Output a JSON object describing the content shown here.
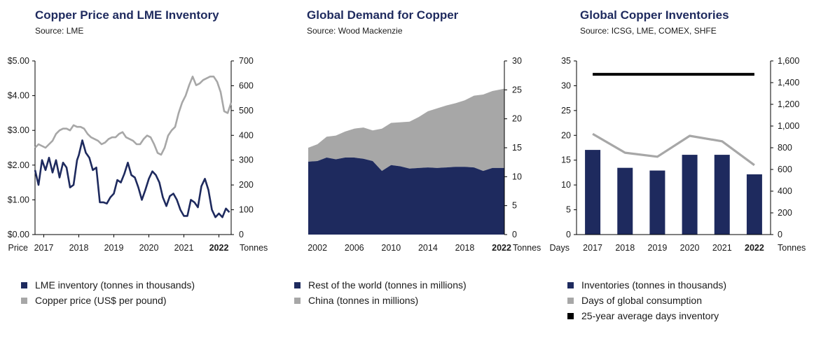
{
  "chart_data": [
    {
      "type": "line",
      "title": "Copper Price and LME Inventory",
      "subtitle": "Source: LME",
      "left_axis_label": "Price",
      "right_axis_label": "Tonnes",
      "left_ticks": [
        "$0.00",
        "$1.00",
        "$2.00",
        "$3.00",
        "$4.00",
        "$5.00"
      ],
      "right_ticks": [
        "0",
        "100",
        "200",
        "300",
        "400",
        "500",
        "600",
        "700"
      ],
      "ylim_left": [
        0,
        5
      ],
      "ylim_right": [
        0,
        700
      ],
      "xlim": [
        2016.75,
        2022.35
      ],
      "x_ticks": [
        {
          "label": "2017",
          "value": 2017.0,
          "bold": false
        },
        {
          "label": "2018",
          "value": 2018.0,
          "bold": false
        },
        {
          "label": "2019",
          "value": 2019.0,
          "bold": false
        },
        {
          "label": "2020",
          "value": 2020.0,
          "bold": false
        },
        {
          "label": "2021",
          "value": 2021.0,
          "bold": false
        },
        {
          "label": "2022",
          "value": 2022.0,
          "bold": true
        }
      ],
      "series": [
        {
          "name": "LME inventory (tonnes in thousands)",
          "axis": "right",
          "color": "#1e2a5e",
          "x": [
            2016.75,
            2016.85,
            2016.95,
            2017.05,
            2017.15,
            2017.25,
            2017.35,
            2017.45,
            2017.55,
            2017.65,
            2017.75,
            2017.85,
            2017.95,
            2018.0,
            2018.1,
            2018.2,
            2018.3,
            2018.4,
            2018.5,
            2018.6,
            2018.7,
            2018.8,
            2018.9,
            2019.0,
            2019.1,
            2019.2,
            2019.3,
            2019.4,
            2019.5,
            2019.6,
            2019.7,
            2019.8,
            2019.9,
            2020.0,
            2020.1,
            2020.2,
            2020.3,
            2020.4,
            2020.5,
            2020.6,
            2020.7,
            2020.8,
            2020.9,
            2021.0,
            2021.1,
            2021.2,
            2021.3,
            2021.4,
            2021.5,
            2021.6,
            2021.7,
            2021.8,
            2021.9,
            2022.0,
            2022.1,
            2022.2,
            2022.3
          ],
          "values": [
            260,
            200,
            300,
            260,
            310,
            250,
            300,
            230,
            290,
            270,
            190,
            200,
            300,
            320,
            380,
            330,
            310,
            260,
            270,
            130,
            130,
            125,
            150,
            165,
            220,
            210,
            245,
            290,
            240,
            230,
            190,
            140,
            180,
            225,
            255,
            240,
            210,
            150,
            115,
            155,
            165,
            140,
            100,
            75,
            75,
            140,
            130,
            110,
            195,
            225,
            180,
            100,
            70,
            85,
            70,
            105,
            90
          ]
        },
        {
          "name": "Copper price (US$ per pound)",
          "axis": "left",
          "color": "#a7a7a7",
          "x": [
            2016.75,
            2016.85,
            2016.95,
            2017.05,
            2017.15,
            2017.25,
            2017.35,
            2017.45,
            2017.55,
            2017.65,
            2017.75,
            2017.85,
            2017.95,
            2018.05,
            2018.15,
            2018.25,
            2018.35,
            2018.45,
            2018.55,
            2018.65,
            2018.75,
            2018.85,
            2018.95,
            2019.05,
            2019.15,
            2019.25,
            2019.35,
            2019.45,
            2019.55,
            2019.65,
            2019.75,
            2019.85,
            2019.95,
            2020.05,
            2020.15,
            2020.25,
            2020.35,
            2020.45,
            2020.55,
            2020.65,
            2020.75,
            2020.85,
            2020.95,
            2021.05,
            2021.15,
            2021.25,
            2021.35,
            2021.45,
            2021.55,
            2021.65,
            2021.75,
            2021.85,
            2021.95,
            2022.05,
            2022.15,
            2022.25,
            2022.35
          ],
          "values": [
            2.5,
            2.6,
            2.55,
            2.5,
            2.6,
            2.7,
            2.9,
            3.0,
            3.05,
            3.05,
            3.0,
            3.15,
            3.1,
            3.1,
            3.05,
            2.9,
            2.8,
            2.75,
            2.7,
            2.6,
            2.65,
            2.75,
            2.8,
            2.8,
            2.9,
            2.95,
            2.8,
            2.75,
            2.7,
            2.6,
            2.6,
            2.75,
            2.85,
            2.8,
            2.6,
            2.35,
            2.3,
            2.5,
            2.85,
            3.0,
            3.1,
            3.5,
            3.8,
            4.0,
            4.3,
            4.55,
            4.3,
            4.35,
            4.45,
            4.5,
            4.55,
            4.55,
            4.4,
            4.1,
            3.55,
            3.5,
            3.8
          ]
        }
      ]
    },
    {
      "type": "area",
      "title": "Global Demand for Copper",
      "subtitle": "Source: Wood Mackenzie",
      "right_axis_label": "Tonnes",
      "right_ticks": [
        "0",
        "5",
        "10",
        "15",
        "20",
        "25",
        "30"
      ],
      "ylim": [
        0,
        30
      ],
      "xlim": [
        2001,
        2022.3
      ],
      "x_ticks": [
        {
          "label": "2002",
          "value": 2002,
          "bold": false
        },
        {
          "label": "2006",
          "value": 2006,
          "bold": false
        },
        {
          "label": "2010",
          "value": 2010,
          "bold": false
        },
        {
          "label": "2014",
          "value": 2014,
          "bold": false
        },
        {
          "label": "2018",
          "value": 2018,
          "bold": false
        },
        {
          "label": "2022",
          "value": 2022,
          "bold": true
        }
      ],
      "x": [
        2001,
        2002,
        2003,
        2004,
        2005,
        2006,
        2007,
        2008,
        2009,
        2010,
        2011,
        2012,
        2013,
        2014,
        2015,
        2016,
        2017,
        2018,
        2019,
        2020,
        2021,
        2022.3
      ],
      "series": [
        {
          "name": "Rest of the world (tonnes in millions)",
          "color": "#1e2a5e",
          "values": [
            12.6,
            12.7,
            13.3,
            13.0,
            13.3,
            13.3,
            13.1,
            12.7,
            11.0,
            12.0,
            11.8,
            11.4,
            11.5,
            11.6,
            11.5,
            11.6,
            11.7,
            11.7,
            11.6,
            11.0,
            11.5,
            11.5
          ]
        },
        {
          "name": "China (tonnes in millions)",
          "color": "#a7a7a7",
          "values": [
            2.4,
            2.9,
            3.6,
            4.1,
            4.5,
            5.0,
            5.4,
            5.3,
            7.3,
            7.3,
            7.6,
            8.1,
            8.8,
            9.7,
            10.3,
            10.7,
            11.0,
            11.5,
            12.4,
            13.2,
            13.3,
            13.7
          ]
        }
      ]
    },
    {
      "type": "bar",
      "title": "Global Copper Inventories",
      "subtitle": "Source: ICSG, LME, COMEX, SHFE",
      "left_axis_label": "Days",
      "right_axis_label": "Tonnes",
      "left_ticks": [
        "0",
        "5",
        "10",
        "15",
        "20",
        "25",
        "30",
        "35"
      ],
      "right_ticks": [
        "0",
        "200",
        "400",
        "600",
        "800",
        "1,000",
        "1,200",
        "1,400",
        "1,600"
      ],
      "ylim_left": [
        0,
        35
      ],
      "ylim_right": [
        0,
        1600
      ],
      "categories": [
        {
          "label": "2017",
          "bold": false
        },
        {
          "label": "2018",
          "bold": false
        },
        {
          "label": "2019",
          "bold": false
        },
        {
          "label": "2020",
          "bold": false
        },
        {
          "label": "2021",
          "bold": false
        },
        {
          "label": "2022",
          "bold": true
        }
      ],
      "series": [
        {
          "name": "Inventories (tonnes in thousands)",
          "axis": "right",
          "kind": "bar",
          "color": "#1e2a5e",
          "values": [
            780,
            615,
            590,
            735,
            735,
            555
          ]
        },
        {
          "name": "Days of global consumption",
          "axis": "left",
          "kind": "line",
          "color": "#a7a7a7",
          "values": [
            20.3,
            16.5,
            15.7,
            19.9,
            18.8,
            14.0
          ]
        },
        {
          "name": "25-year average days inventory",
          "axis": "left",
          "kind": "line",
          "color": "#000000",
          "values": [
            32.3,
            32.3,
            32.3,
            32.3,
            32.3,
            32.3
          ]
        }
      ]
    }
  ]
}
